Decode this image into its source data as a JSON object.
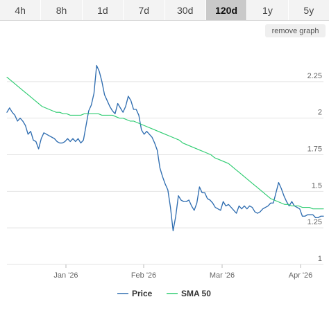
{
  "timeframes": {
    "items": [
      "4h",
      "8h",
      "1d",
      "7d",
      "30d",
      "120d",
      "1y",
      "5y"
    ],
    "active": "120d"
  },
  "controls": {
    "remove_graph_label": "remove graph"
  },
  "chart_data": {
    "type": "line",
    "x_labels": [
      "Jan '26",
      "Feb '26",
      "Mar '26",
      "Apr '26"
    ],
    "y_ticks": [
      1,
      1.25,
      1.5,
      1.75,
      2,
      2.25
    ],
    "ylim": [
      1,
      2.5
    ],
    "grid": true,
    "legend_position": "bottom-center",
    "series": [
      {
        "name": "Price",
        "color": "#2f6db0",
        "values": [
          2.04,
          2.07,
          2.04,
          2.02,
          1.98,
          2.0,
          1.98,
          1.95,
          1.89,
          1.91,
          1.85,
          1.84,
          1.79,
          1.86,
          1.9,
          1.89,
          1.88,
          1.87,
          1.86,
          1.84,
          1.83,
          1.83,
          1.84,
          1.86,
          1.84,
          1.86,
          1.84,
          1.86,
          1.83,
          1.85,
          1.95,
          2.05,
          2.09,
          2.17,
          2.36,
          2.32,
          2.25,
          2.16,
          2.12,
          2.08,
          2.05,
          2.03,
          2.1,
          2.07,
          2.04,
          2.08,
          2.15,
          2.12,
          2.06,
          2.06,
          2.02,
          1.92,
          1.89,
          1.91,
          1.89,
          1.87,
          1.83,
          1.78,
          1.66,
          1.6,
          1.55,
          1.51,
          1.39,
          1.23,
          1.33,
          1.47,
          1.44,
          1.43,
          1.43,
          1.44,
          1.4,
          1.37,
          1.42,
          1.53,
          1.49,
          1.49,
          1.45,
          1.44,
          1.42,
          1.39,
          1.38,
          1.37,
          1.43,
          1.4,
          1.41,
          1.39,
          1.37,
          1.35,
          1.4,
          1.38,
          1.4,
          1.38,
          1.4,
          1.39,
          1.36,
          1.35,
          1.36,
          1.38,
          1.39,
          1.4,
          1.42,
          1.42,
          1.49,
          1.56,
          1.52,
          1.47,
          1.43,
          1.4,
          1.43,
          1.4,
          1.39,
          1.38,
          1.33,
          1.33,
          1.34,
          1.34,
          1.34,
          1.32,
          1.32,
          1.33,
          1.33
        ]
      },
      {
        "name": "SMA 50",
        "color": "#2ecc71",
        "values": [
          2.28,
          2.26,
          2.24,
          2.22,
          2.2,
          2.18,
          2.16,
          2.14,
          2.12,
          2.1,
          2.08,
          2.07,
          2.06,
          2.05,
          2.04,
          2.04,
          2.03,
          2.03,
          2.02,
          2.02,
          2.02,
          2.02,
          2.03,
          2.03,
          2.03,
          2.03,
          2.03,
          2.02,
          2.02,
          2.02,
          2.02,
          2.01,
          2.0,
          2.0,
          1.99,
          1.98,
          1.98,
          1.97,
          1.96,
          1.95,
          1.94,
          1.93,
          1.92,
          1.91,
          1.9,
          1.89,
          1.88,
          1.87,
          1.86,
          1.85,
          1.83,
          1.82,
          1.81,
          1.8,
          1.79,
          1.78,
          1.77,
          1.76,
          1.75,
          1.73,
          1.72,
          1.71,
          1.7,
          1.69,
          1.67,
          1.65,
          1.63,
          1.61,
          1.59,
          1.57,
          1.55,
          1.53,
          1.51,
          1.49,
          1.47,
          1.45,
          1.44,
          1.43,
          1.42,
          1.41,
          1.41,
          1.4,
          1.4,
          1.4,
          1.39,
          1.39,
          1.39,
          1.38,
          1.38,
          1.38,
          1.38
        ]
      }
    ]
  }
}
